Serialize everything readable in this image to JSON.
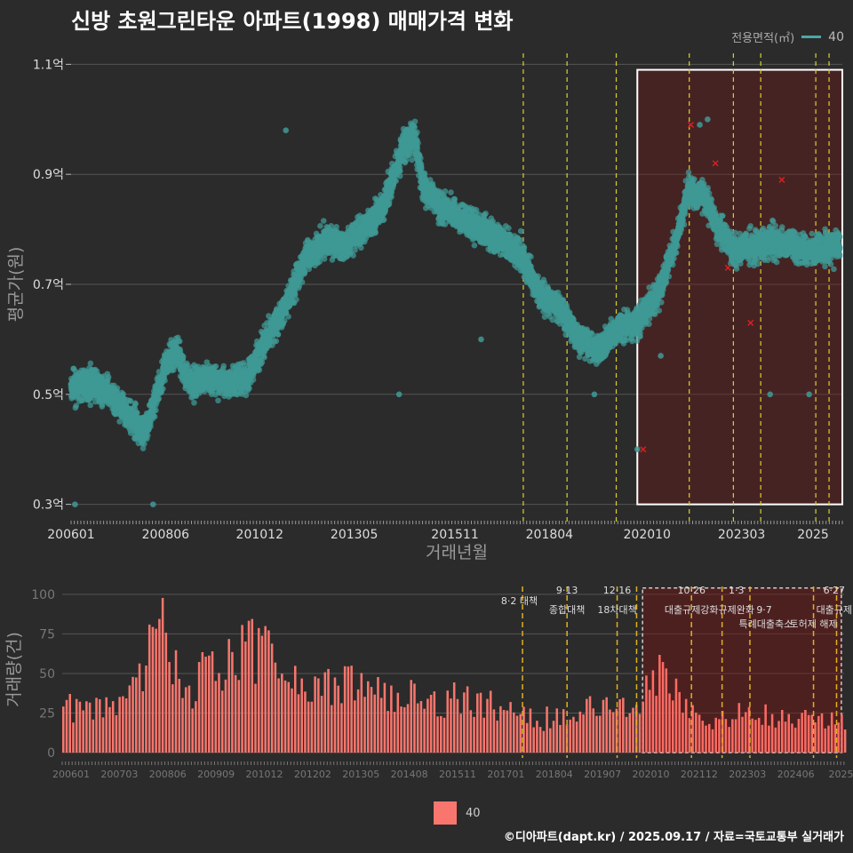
{
  "title": "신방 초원그린타운 아파트(1998) 매매가격 변화",
  "legend_top": {
    "title": "전용면적(㎡)",
    "value": "40",
    "color": "#4aa9a4"
  },
  "legend_bottom": {
    "value": "40",
    "color": "#f8766d"
  },
  "footer": "©디아파트(dapt.kr) / 2025.09.17 / 자료=국토교통부 실거래가",
  "chart_data": [
    {
      "type": "scatter",
      "xlabel": "거래년월",
      "ylabel": "평균가(원)",
      "xlim": [
        2006.0,
        2025.75
      ],
      "ylim": [
        0.28,
        1.12
      ],
      "yticks": [
        0.3,
        0.5,
        0.7,
        0.9,
        1.1
      ],
      "ytick_labels": [
        "0.3억",
        "0.5억",
        "0.7억",
        "0.9억",
        "1.1억"
      ],
      "xticks": [
        2006.0,
        2008.42,
        2010.83,
        2013.25,
        2015.83,
        2018.25,
        2020.75,
        2023.17,
        2025.0
      ],
      "xtick_labels": [
        "200601",
        "200806",
        "201012",
        "201305",
        "201511",
        "201804",
        "202010",
        "202303",
        "2025"
      ],
      "grid": true,
      "highlight_box": {
        "x": [
          2020.5,
          2025.75
        ],
        "y": [
          0.3,
          1.09
        ]
      },
      "policy_lines": [
        2017.58,
        2018.7,
        2019.96,
        2021.83,
        2022.96,
        2023.66,
        2025.07,
        2025.41
      ],
      "trend": [
        [
          2006.0,
          0.51
        ],
        [
          2006.5,
          0.52
        ],
        [
          2007.0,
          0.5
        ],
        [
          2007.5,
          0.46
        ],
        [
          2007.9,
          0.43
        ],
        [
          2008.4,
          0.55
        ],
        [
          2008.7,
          0.58
        ],
        [
          2009.0,
          0.52
        ],
        [
          2009.5,
          0.53
        ],
        [
          2010.0,
          0.52
        ],
        [
          2010.5,
          0.53
        ],
        [
          2011.0,
          0.6
        ],
        [
          2011.5,
          0.66
        ],
        [
          2012.0,
          0.75
        ],
        [
          2012.5,
          0.78
        ],
        [
          2013.0,
          0.77
        ],
        [
          2013.5,
          0.8
        ],
        [
          2014.0,
          0.84
        ],
        [
          2014.5,
          0.95
        ],
        [
          2014.8,
          0.97
        ],
        [
          2015.0,
          0.88
        ],
        [
          2015.5,
          0.84
        ],
        [
          2016.0,
          0.82
        ],
        [
          2016.5,
          0.8
        ],
        [
          2017.0,
          0.78
        ],
        [
          2017.5,
          0.76
        ],
        [
          2018.0,
          0.68
        ],
        [
          2018.5,
          0.66
        ],
        [
          2019.0,
          0.6
        ],
        [
          2019.5,
          0.58
        ],
        [
          2020.0,
          0.62
        ],
        [
          2020.5,
          0.63
        ],
        [
          2021.0,
          0.68
        ],
        [
          2021.5,
          0.78
        ],
        [
          2021.8,
          0.87
        ],
        [
          2022.2,
          0.86
        ],
        [
          2022.6,
          0.8
        ],
        [
          2023.0,
          0.76
        ],
        [
          2023.5,
          0.77
        ],
        [
          2024.0,
          0.78
        ],
        [
          2024.5,
          0.77
        ],
        [
          2025.0,
          0.76
        ],
        [
          2025.5,
          0.77
        ]
      ],
      "outliers": [
        [
          2006.1,
          0.3
        ],
        [
          2008.1,
          0.3
        ],
        [
          2011.5,
          0.98
        ],
        [
          2014.4,
          0.5
        ],
        [
          2019.4,
          0.5
        ],
        [
          2020.5,
          0.4
        ],
        [
          2022.1,
          0.99
        ],
        [
          2022.3,
          1.0
        ],
        [
          2023.9,
          0.5
        ],
        [
          2024.9,
          0.5
        ],
        [
          2021.1,
          0.57
        ],
        [
          2016.5,
          0.6
        ]
      ],
      "red_marks": [
        [
          2020.65,
          0.4
        ],
        [
          2021.87,
          0.99
        ],
        [
          2022.82,
          0.73
        ],
        [
          2024.2,
          0.89
        ],
        [
          2023.4,
          0.63
        ],
        [
          2022.5,
          0.92
        ]
      ]
    },
    {
      "type": "bar",
      "xlabel": "",
      "ylabel": "거래량(건)",
      "ylim": [
        0,
        105
      ],
      "yticks": [
        0,
        25,
        50,
        75,
        100
      ],
      "ytick_labels": [
        "0",
        "25",
        "50",
        "75",
        "100"
      ],
      "xtick_labels": [
        "200601",
        "200703",
        "200806",
        "200909",
        "201012",
        "201202",
        "201305",
        "201408",
        "201511",
        "201701",
        "201804",
        "201907",
        "202010",
        "202112",
        "202303",
        "202406",
        "20250"
      ],
      "profile": [
        [
          2006.0,
          28
        ],
        [
          2007.0,
          30
        ],
        [
          2007.5,
          38
        ],
        [
          2008.0,
          45
        ],
        [
          2008.4,
          85
        ],
        [
          2008.7,
          60
        ],
        [
          2009.0,
          35
        ],
        [
          2009.5,
          48
        ],
        [
          2010.0,
          55
        ],
        [
          2010.5,
          62
        ],
        [
          2011.0,
          68
        ],
        [
          2011.5,
          52
        ],
        [
          2012.0,
          40
        ],
        [
          2012.5,
          38
        ],
        [
          2013.0,
          42
        ],
        [
          2013.5,
          40
        ],
        [
          2014.0,
          38
        ],
        [
          2014.5,
          35
        ],
        [
          2015.0,
          33
        ],
        [
          2015.5,
          32
        ],
        [
          2016.0,
          34
        ],
        [
          2016.5,
          30
        ],
        [
          2017.0,
          28
        ],
        [
          2017.5,
          22
        ],
        [
          2018.0,
          20
        ],
        [
          2018.5,
          26
        ],
        [
          2019.0,
          24
        ],
        [
          2019.5,
          30
        ],
        [
          2020.0,
          32
        ],
        [
          2020.5,
          36
        ],
        [
          2021.0,
          48
        ],
        [
          2021.5,
          40
        ],
        [
          2022.0,
          22
        ],
        [
          2022.5,
          20
        ],
        [
          2023.0,
          24
        ],
        [
          2023.5,
          26
        ],
        [
          2024.0,
          24
        ],
        [
          2024.5,
          22
        ],
        [
          2025.0,
          20
        ],
        [
          2025.6,
          18
        ]
      ],
      "highlight_box": {
        "x": [
          2020.6,
          2025.6
        ],
        "y": [
          0,
          104
        ]
      },
      "policy_lines": [
        2017.58,
        2018.7,
        2019.96,
        2020.45,
        2021.83,
        2022.6,
        2023.3,
        2024.9,
        2025.48
      ],
      "annotations": [
        {
          "x": 2017.5,
          "row": 1,
          "text": "8·2 대책"
        },
        {
          "x": 2018.7,
          "row": 0,
          "text": "9·13"
        },
        {
          "x": 2018.7,
          "row": 2,
          "text": "종합대책"
        },
        {
          "x": 2019.96,
          "row": 0,
          "text": "12·16"
        },
        {
          "x": 2019.96,
          "row": 2,
          "text": "18차대책"
        },
        {
          "x": 2021.83,
          "row": 0,
          "text": "10·26"
        },
        {
          "x": 2021.83,
          "row": 2,
          "text": "대출규제강화"
        },
        {
          "x": 2022.96,
          "row": 0,
          "text": "1·3"
        },
        {
          "x": 2022.96,
          "row": 2,
          "text": "규제완화"
        },
        {
          "x": 2023.66,
          "row": 2,
          "text": "9·7"
        },
        {
          "x": 2023.7,
          "row": 3,
          "text": "특례대출축소"
        },
        {
          "x": 2024.9,
          "row": 3,
          "text": "토허제 해제"
        },
        {
          "x": 2025.42,
          "row": 0,
          "text": "6·27"
        },
        {
          "x": 2025.42,
          "row": 2,
          "text": "대출규제"
        }
      ]
    }
  ]
}
